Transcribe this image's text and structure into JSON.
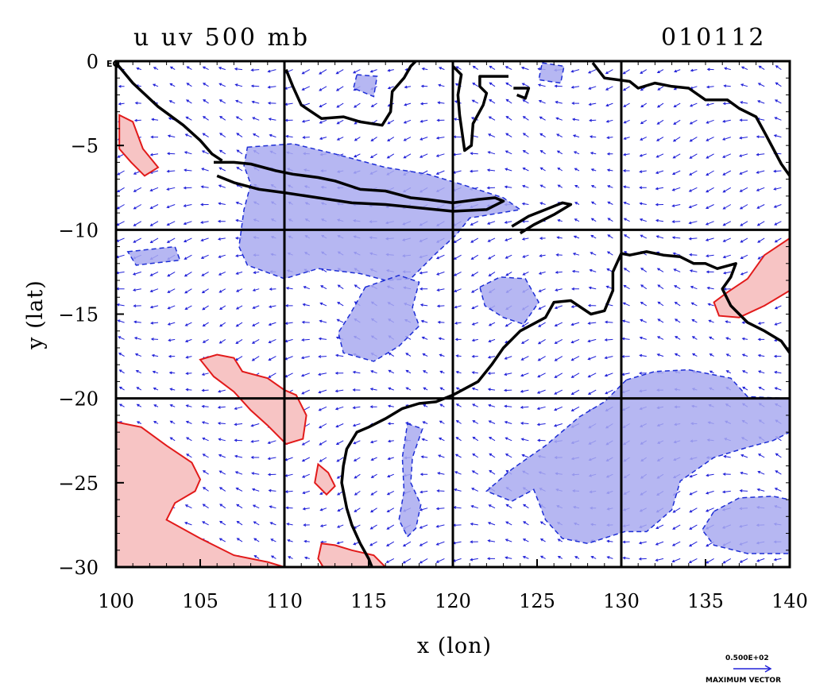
{
  "figure": {
    "title_left": "u  uv  500  mb",
    "title_right": "010112",
    "xlabel": "x (lon)",
    "ylabel": "y (lat)",
    "eq_label": "EQ",
    "max_vector_value": "0.500E+02",
    "max_vector_label": "MAXIMUM VECTOR",
    "colors": {
      "background": "#ffffff",
      "frame": "#000000",
      "coast": "#000000",
      "negative_fill": "#a9aaf0",
      "negative_line": "#1e2ed6",
      "positive_fill": "#f7c4c4",
      "positive_line": "#e21a1a",
      "vectors": "#2020d8"
    }
  },
  "chart_data": {
    "type": "map",
    "xlabel": "x (lon)",
    "ylabel": "y (lat)",
    "xlim": [
      100,
      140
    ],
    "ylim": [
      -30,
      0
    ],
    "xticks": [
      100,
      105,
      110,
      115,
      120,
      125,
      130,
      135,
      140
    ],
    "yticks": [
      0,
      -5,
      -10,
      -15,
      -20,
      -25,
      -30
    ],
    "ytick_labels": [
      "0",
      "−5",
      "−10",
      "−15",
      "−20",
      "−25",
      "−30"
    ],
    "gridlines_lon": [
      110,
      120,
      130
    ],
    "gridlines_lat": [
      -10,
      -20
    ],
    "vector_spacing_deg": 1,
    "negative_regions": [
      {
        "name": "java-sea",
        "points": [
          [
            107.8,
            -5.1
          ],
          [
            110.5,
            -4.9
          ],
          [
            113,
            -5.5
          ],
          [
            116,
            -6.3
          ],
          [
            118.5,
            -6.7
          ],
          [
            120.5,
            -7.3
          ],
          [
            123,
            -8.1
          ],
          [
            124,
            -8.8
          ],
          [
            121,
            -9.3
          ],
          [
            120.2,
            -10.3
          ],
          [
            119,
            -11.4
          ],
          [
            117.5,
            -12.9
          ],
          [
            116,
            -13
          ],
          [
            114.5,
            -12.6
          ],
          [
            112,
            -12.3
          ],
          [
            110,
            -12.9
          ],
          [
            107.8,
            -12.1
          ],
          [
            107.3,
            -11
          ],
          [
            107.6,
            -8.8
          ],
          [
            108,
            -7.3
          ],
          [
            107.6,
            -6.2
          ]
        ]
      },
      {
        "name": "west-small",
        "points": [
          [
            100.7,
            -11.3
          ],
          [
            103.5,
            -11
          ],
          [
            103.8,
            -11.8
          ],
          [
            101.2,
            -12.1
          ]
        ]
      },
      {
        "name": "north-blob",
        "points": [
          [
            114.3,
            -0.8
          ],
          [
            115.5,
            -0.9
          ],
          [
            115.3,
            -2.1
          ],
          [
            114.1,
            -1.6
          ]
        ]
      },
      {
        "name": "timor-top",
        "points": [
          [
            125.3,
            -0.1
          ],
          [
            126.6,
            -0.3
          ],
          [
            126.4,
            -1.3
          ],
          [
            125.1,
            -1.1
          ]
        ]
      },
      {
        "name": "central-blob",
        "points": [
          [
            114.8,
            -13.4
          ],
          [
            116.8,
            -12.7
          ],
          [
            118,
            -13.1
          ],
          [
            117.6,
            -14.6
          ],
          [
            118,
            -15.7
          ],
          [
            116.8,
            -16.9
          ],
          [
            115.3,
            -17.8
          ],
          [
            113.5,
            -17.3
          ],
          [
            113.2,
            -16.1
          ],
          [
            113.9,
            -15
          ]
        ]
      },
      {
        "name": "timor-sea",
        "points": [
          [
            121.6,
            -13.4
          ],
          [
            122.8,
            -12.8
          ],
          [
            124.3,
            -12.9
          ],
          [
            125.1,
            -14.3
          ],
          [
            124.2,
            -15.6
          ],
          [
            123,
            -15.2
          ],
          [
            121.9,
            -14.5
          ]
        ]
      },
      {
        "name": "southeast",
        "points": [
          [
            130.3,
            -18.9
          ],
          [
            132,
            -18.4
          ],
          [
            134,
            -18.3
          ],
          [
            136.5,
            -18.8
          ],
          [
            137.5,
            -19.9
          ],
          [
            140,
            -20
          ],
          [
            140,
            -22
          ],
          [
            139,
            -22.5
          ],
          [
            137.5,
            -22.9
          ],
          [
            135.5,
            -23.5
          ],
          [
            133.5,
            -24.9
          ],
          [
            133,
            -26.6
          ],
          [
            132.2,
            -27.3
          ],
          [
            131.5,
            -27.9
          ],
          [
            130.2,
            -27.9
          ],
          [
            128,
            -28.6
          ],
          [
            126.5,
            -28.3
          ],
          [
            125.5,
            -27.2
          ],
          [
            124.8,
            -25.4
          ],
          [
            123.5,
            -26.1
          ],
          [
            122,
            -25.5
          ],
          [
            123.5,
            -24.2
          ],
          [
            125.5,
            -22.8
          ],
          [
            127.5,
            -21.1
          ],
          [
            129,
            -20.2
          ]
        ]
      },
      {
        "name": "south-east-2",
        "points": [
          [
            135.5,
            -26.7
          ],
          [
            137,
            -25.9
          ],
          [
            139,
            -25.8
          ],
          [
            140,
            -26
          ],
          [
            140,
            -29.2
          ],
          [
            137.5,
            -29.2
          ],
          [
            135.5,
            -28.7
          ],
          [
            134.8,
            -27.8
          ]
        ]
      },
      {
        "name": "australia-coast",
        "points": [
          [
            117.3,
            -21.5
          ],
          [
            118.2,
            -21.8
          ],
          [
            117.6,
            -23.5
          ],
          [
            117.5,
            -25
          ],
          [
            118.1,
            -26.3
          ],
          [
            117.8,
            -27.7
          ],
          [
            117.3,
            -28.2
          ],
          [
            116.8,
            -27.2
          ],
          [
            117.1,
            -25.5
          ],
          [
            117,
            -23.5
          ]
        ]
      }
    ],
    "positive_regions": [
      {
        "name": "west-top",
        "points": [
          [
            100.2,
            -3.2
          ],
          [
            101,
            -3.6
          ],
          [
            101.6,
            -5.2
          ],
          [
            102.5,
            -6.3
          ],
          [
            101.7,
            -6.8
          ],
          [
            100.9,
            -6
          ],
          [
            100.2,
            -5.2
          ]
        ]
      },
      {
        "name": "central-west",
        "points": [
          [
            105,
            -17.7
          ],
          [
            106,
            -17.4
          ],
          [
            107,
            -17.6
          ],
          [
            107.5,
            -18.4
          ],
          [
            109,
            -18.8
          ],
          [
            110,
            -19.5
          ],
          [
            110.7,
            -19.8
          ],
          [
            111.3,
            -21
          ],
          [
            111.1,
            -22.4
          ],
          [
            110.1,
            -22.7
          ],
          [
            109,
            -21.6
          ],
          [
            108,
            -20.7
          ],
          [
            107,
            -19.6
          ],
          [
            105.8,
            -18.7
          ]
        ]
      },
      {
        "name": "southwest",
        "points": [
          [
            100,
            -21.4
          ],
          [
            101.5,
            -21.7
          ],
          [
            103,
            -22.8
          ],
          [
            104.5,
            -23.8
          ],
          [
            105,
            -24.8
          ],
          [
            104.7,
            -25.5
          ],
          [
            103.5,
            -26.2
          ],
          [
            103,
            -27.2
          ],
          [
            105,
            -28.3
          ],
          [
            107,
            -29.3
          ],
          [
            109,
            -29.7
          ],
          [
            110,
            -30
          ],
          [
            100,
            -30
          ]
        ]
      },
      {
        "name": "south-central",
        "points": [
          [
            112.2,
            -28.6
          ],
          [
            113,
            -28.7
          ],
          [
            114,
            -29
          ],
          [
            115.3,
            -29.3
          ],
          [
            116,
            -30
          ],
          [
            112.3,
            -30
          ],
          [
            112,
            -29.5
          ]
        ]
      },
      {
        "name": "east-patch",
        "points": [
          [
            140,
            -10.5
          ],
          [
            138.5,
            -11.5
          ],
          [
            137.5,
            -12.9
          ],
          [
            136.3,
            -13.7
          ],
          [
            135.5,
            -14.3
          ],
          [
            135.8,
            -15.1
          ],
          [
            137,
            -15.2
          ],
          [
            138.5,
            -14.5
          ],
          [
            140,
            -13.6
          ]
        ]
      },
      {
        "name": "small-red",
        "points": [
          [
            112,
            -23.9
          ],
          [
            112.6,
            -24.4
          ],
          [
            113,
            -25.2
          ],
          [
            112.5,
            -25.7
          ],
          [
            111.8,
            -25
          ]
        ]
      }
    ],
    "coastlines": [
      {
        "name": "sumatra-borneo-n",
        "points": [
          [
            100,
            -0.1
          ],
          [
            101,
            -1.3
          ],
          [
            102.5,
            -2.7
          ],
          [
            104,
            -3.8
          ],
          [
            105,
            -4.7
          ],
          [
            105.7,
            -5.5
          ],
          [
            106.3,
            -5.9
          ]
        ]
      },
      {
        "name": "java-north",
        "points": [
          [
            105.8,
            -6
          ],
          [
            107,
            -6
          ],
          [
            108,
            -6.1
          ],
          [
            109.5,
            -6.5
          ],
          [
            110.5,
            -6.7
          ],
          [
            112,
            -6.9
          ],
          [
            113,
            -7.1
          ],
          [
            114.5,
            -7.6
          ],
          [
            116,
            -7.7
          ],
          [
            117.5,
            -8.1
          ],
          [
            118.5,
            -8.2
          ],
          [
            120,
            -8.4
          ],
          [
            121.5,
            -8.2
          ],
          [
            122.5,
            -8.1
          ],
          [
            123,
            -8.3
          ],
          [
            122,
            -8.8
          ],
          [
            120,
            -8.9
          ],
          [
            118,
            -8.7
          ],
          [
            116,
            -8.5
          ],
          [
            114,
            -8.4
          ],
          [
            112,
            -8.1
          ],
          [
            110,
            -7.8
          ],
          [
            108.5,
            -7.6
          ],
          [
            107,
            -7.2
          ],
          [
            106,
            -6.8
          ]
        ]
      },
      {
        "name": "borneo-south",
        "points": [
          [
            110.1,
            -0.5
          ],
          [
            110.5,
            -1.5
          ],
          [
            111,
            -2.6
          ],
          [
            112.2,
            -3.4
          ],
          [
            113.5,
            -3.3
          ],
          [
            114.5,
            -3.6
          ],
          [
            115.8,
            -3.8
          ],
          [
            116.3,
            -3
          ],
          [
            116.4,
            -1.8
          ],
          [
            117.1,
            -1
          ],
          [
            117.5,
            -0.3
          ],
          [
            117.8,
            0
          ]
        ]
      },
      {
        "name": "sulawesi",
        "points": [
          [
            120,
            -0.3
          ],
          [
            120.5,
            -0.8
          ],
          [
            120.3,
            -2
          ],
          [
            120.4,
            -3.2
          ],
          [
            120.7,
            -5.3
          ],
          [
            121.1,
            -5
          ],
          [
            121.2,
            -3.7
          ],
          [
            121.8,
            -2.6
          ],
          [
            122,
            -1.9
          ],
          [
            121.6,
            -1.5
          ],
          [
            121.6,
            -0.9
          ],
          [
            122.5,
            -0.9
          ],
          [
            123.3,
            -0.9
          ]
        ]
      },
      {
        "name": "halmahera",
        "points": [
          [
            128.3,
            -0.1
          ],
          [
            129,
            -1
          ],
          [
            130.5,
            -1.2
          ],
          [
            131,
            -1.6
          ],
          [
            132,
            -1.3
          ],
          [
            133,
            -1.5
          ],
          [
            134,
            -1.6
          ],
          [
            135,
            -2.3
          ],
          [
            136.3,
            -2.3
          ],
          [
            137,
            -2.8
          ],
          [
            138,
            -3.3
          ],
          [
            138.6,
            -4.4
          ],
          [
            139.5,
            -6.1
          ],
          [
            140,
            -6.8
          ]
        ]
      },
      {
        "name": "timor",
        "points": [
          [
            123.5,
            -9.8
          ],
          [
            124.5,
            -9.2
          ],
          [
            125.5,
            -8.8
          ],
          [
            126.5,
            -8.4
          ],
          [
            127,
            -8.5
          ],
          [
            126,
            -9.1
          ],
          [
            124.8,
            -9.7
          ],
          [
            124,
            -10.2
          ]
        ]
      },
      {
        "name": "australia-north",
        "points": [
          [
            130,
            -11.4
          ],
          [
            130.5,
            -11.5
          ],
          [
            131.5,
            -11.3
          ],
          [
            132.5,
            -11.5
          ],
          [
            133.5,
            -11.6
          ],
          [
            134.3,
            -12
          ],
          [
            135,
            -12
          ],
          [
            135.7,
            -12.3
          ],
          [
            136.8,
            -12
          ],
          [
            136.5,
            -12.8
          ],
          [
            136,
            -13.5
          ],
          [
            136.5,
            -14.5
          ],
          [
            137.5,
            -15.5
          ],
          [
            138.5,
            -16
          ],
          [
            139.5,
            -16.6
          ],
          [
            140,
            -17.3
          ]
        ]
      },
      {
        "name": "australia-west",
        "points": [
          [
            130,
            -11.4
          ],
          [
            129.5,
            -12.5
          ],
          [
            129.5,
            -13.6
          ],
          [
            129,
            -14.8
          ],
          [
            128.2,
            -15
          ],
          [
            127,
            -14.2
          ],
          [
            126,
            -14.3
          ],
          [
            125.5,
            -15.2
          ],
          [
            124,
            -16
          ],
          [
            123,
            -17
          ],
          [
            122.3,
            -18
          ],
          [
            121.5,
            -19
          ],
          [
            120,
            -19.8
          ],
          [
            119,
            -20.2
          ],
          [
            118,
            -20.3
          ],
          [
            117,
            -20.6
          ],
          [
            116,
            -21.2
          ],
          [
            115,
            -21.7
          ],
          [
            114.3,
            -22
          ],
          [
            113.7,
            -23
          ],
          [
            113.5,
            -24
          ],
          [
            113.4,
            -25
          ],
          [
            113.7,
            -26.5
          ],
          [
            114,
            -27.5
          ],
          [
            114.5,
            -28.6
          ],
          [
            115,
            -29.5
          ],
          [
            115.2,
            -30
          ]
        ]
      },
      {
        "name": "new-guinea-island",
        "points": [
          [
            123.6,
            -1.6
          ],
          [
            124.5,
            -1.6
          ],
          [
            124.3,
            -2.2
          ],
          [
            123.8,
            -2
          ]
        ]
      }
    ],
    "wind_field": "blue arrows on a 1-degree grid showing predominantly south-easterly flow"
  }
}
